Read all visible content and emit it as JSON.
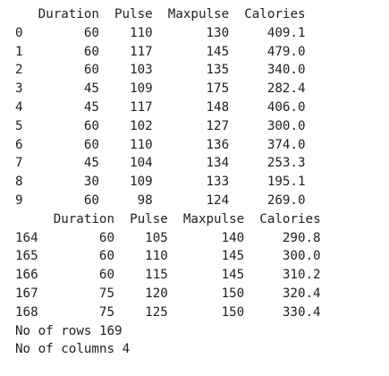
{
  "output": {
    "head": {
      "columns": [
        "Duration",
        "Pulse",
        "Maxpulse",
        "Calories"
      ],
      "index": [
        "0",
        "1",
        "2",
        "3",
        "4",
        "5",
        "6",
        "7",
        "8",
        "9"
      ],
      "rows": [
        [
          "60",
          "110",
          "130",
          "409.1"
        ],
        [
          "60",
          "117",
          "145",
          "479.0"
        ],
        [
          "60",
          "103",
          "135",
          "340.0"
        ],
        [
          "45",
          "109",
          "175",
          "282.4"
        ],
        [
          "45",
          "117",
          "148",
          "406.0"
        ],
        [
          "60",
          "102",
          "127",
          "300.0"
        ],
        [
          "60",
          "110",
          "136",
          "374.0"
        ],
        [
          "45",
          "104",
          "134",
          "253.3"
        ],
        [
          "30",
          "109",
          "133",
          "195.1"
        ],
        [
          "60",
          "98",
          "124",
          "269.0"
        ]
      ]
    },
    "tail": {
      "columns": [
        "Duration",
        "Pulse",
        "Maxpulse",
        "Calories"
      ],
      "index": [
        "164",
        "165",
        "166",
        "167",
        "168"
      ],
      "rows": [
        [
          "60",
          "105",
          "140",
          "290.8"
        ],
        [
          "60",
          "110",
          "145",
          "300.0"
        ],
        [
          "60",
          "115",
          "145",
          "310.2"
        ],
        [
          "75",
          "120",
          "150",
          "320.4"
        ],
        [
          "75",
          "125",
          "150",
          "330.4"
        ]
      ]
    },
    "rows_line": "No of rows 169",
    "columns_line": "No of columns 4"
  }
}
